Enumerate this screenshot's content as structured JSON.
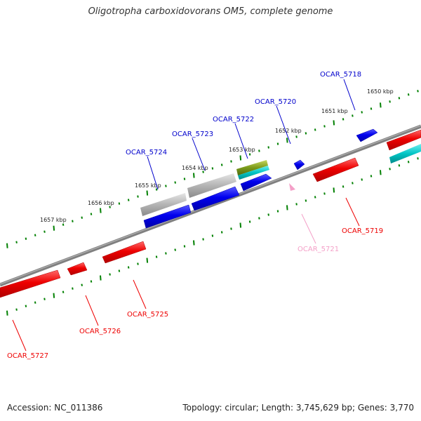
{
  "title": "Oligotropha carboxidovorans OM5, complete genome",
  "footer": {
    "accession": "Accession: NC_011386",
    "topology": "Topology: circular; Length: 3,745,629 bp; Genes: 3,770"
  },
  "ruler_labels": [
    "1650 kbp",
    "1651 kbp",
    "1652 kbp",
    "1653 kbp",
    "1654 kbp",
    "1655 kbp",
    "1656 kbp",
    "1657 kbp"
  ],
  "gene_labels": [
    "OCAR_5718",
    "OCAR_5719",
    "OCAR_5720",
    "OCAR_5721",
    "OCAR_5722",
    "OCAR_5723",
    "OCAR_5724",
    "OCAR_5725",
    "OCAR_5726",
    "OCAR_5727"
  ],
  "colors": {
    "forward": "#0000ee",
    "reverse": "#ee0000",
    "pseudo": "#f4a0c8",
    "rna_teal": "#00bbbb",
    "rna_olive": "#7a9a1a",
    "grey_feature": "#b0b0b0",
    "backbone": "#808080",
    "ruler": "#008000"
  }
}
